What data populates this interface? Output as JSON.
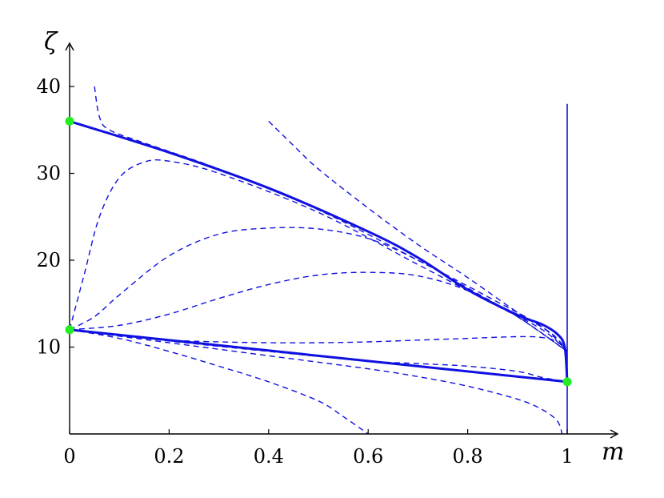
{
  "chart_data": {
    "type": "line",
    "xlabel": "m",
    "ylabel": "ζ",
    "xlim": [
      0,
      1
    ],
    "ylim": [
      0,
      40
    ],
    "xticks": [
      0,
      0.2,
      0.4,
      0.6,
      0.8,
      1
    ],
    "xtick_labels": [
      "0",
      "0.2",
      "0.4",
      "0.6",
      "0.8",
      "1"
    ],
    "yticks": [
      10,
      20,
      30,
      40
    ],
    "ytick_labels": [
      "10",
      "20",
      "30",
      "40"
    ],
    "grid": false,
    "legend": "none",
    "colors": {
      "curve": "#1010e0",
      "point": "#22ee22",
      "axis": "#000000"
    },
    "solid_series": [
      {
        "points": [
          [
            0,
            36
          ],
          [
            0.2,
            32.4
          ],
          [
            0.4,
            28.3
          ],
          [
            0.6,
            23.3
          ],
          [
            0.7,
            20.3
          ],
          [
            0.8,
            16.6
          ],
          [
            0.9,
            13.7
          ],
          [
            0.95,
            12.6
          ],
          [
            0.98,
            11.5
          ],
          [
            0.995,
            10.0
          ],
          [
            1.0,
            6
          ]
        ]
      },
      {
        "points": [
          [
            0,
            12
          ],
          [
            1,
            6
          ]
        ]
      },
      {
        "points": [
          [
            1,
            0
          ],
          [
            1,
            38
          ]
        ]
      }
    ],
    "dashed_series": [
      {
        "points": [
          [
            0.05,
            40
          ],
          [
            0.06,
            36.5
          ],
          [
            0.08,
            35.0
          ],
          [
            0.15,
            33.5
          ],
          [
            0.3,
            30.5
          ],
          [
            0.5,
            25.8
          ],
          [
            0.7,
            20.0
          ],
          [
            0.85,
            15.5
          ],
          [
            0.95,
            12.3
          ],
          [
            1.0,
            9.5
          ]
        ]
      },
      {
        "points": [
          [
            0.4,
            36
          ],
          [
            0.45,
            33.2
          ],
          [
            0.5,
            30.5
          ],
          [
            0.6,
            26.0
          ],
          [
            0.7,
            21.8
          ],
          [
            0.8,
            18.0
          ],
          [
            0.9,
            14.0
          ],
          [
            0.97,
            11.5
          ],
          [
            1.0,
            9.5
          ]
        ]
      },
      {
        "points": [
          [
            0,
            12
          ],
          [
            0.03,
            18.5
          ],
          [
            0.06,
            25.0
          ],
          [
            0.1,
            29.5
          ],
          [
            0.15,
            31.3
          ],
          [
            0.2,
            31.4
          ],
          [
            0.3,
            30.0
          ],
          [
            0.5,
            25.5
          ],
          [
            0.7,
            19.5
          ],
          [
            0.85,
            15.0
          ],
          [
            0.95,
            12.0
          ],
          [
            1.0,
            9.5
          ]
        ]
      },
      {
        "points": [
          [
            0,
            12
          ],
          [
            0.05,
            13.5
          ],
          [
            0.1,
            16.0
          ],
          [
            0.2,
            20.5
          ],
          [
            0.3,
            23.0
          ],
          [
            0.4,
            23.7
          ],
          [
            0.5,
            23.6
          ],
          [
            0.6,
            22.5
          ],
          [
            0.7,
            20.0
          ],
          [
            0.8,
            16.8
          ],
          [
            0.9,
            13.5
          ],
          [
            1.0,
            9.5
          ]
        ]
      },
      {
        "points": [
          [
            0,
            12
          ],
          [
            0.1,
            12.5
          ],
          [
            0.2,
            13.8
          ],
          [
            0.3,
            15.6
          ],
          [
            0.4,
            17.2
          ],
          [
            0.5,
            18.3
          ],
          [
            0.6,
            18.6
          ],
          [
            0.7,
            18.2
          ],
          [
            0.8,
            16.5
          ],
          [
            0.9,
            13.5
          ],
          [
            1.0,
            9.5
          ]
        ]
      },
      {
        "points": [
          [
            0,
            12
          ],
          [
            0.1,
            11.3
          ],
          [
            0.2,
            10.8
          ],
          [
            0.3,
            10.6
          ],
          [
            0.4,
            10.5
          ],
          [
            0.5,
            10.5
          ],
          [
            0.6,
            10.6
          ],
          [
            0.7,
            10.8
          ],
          [
            0.8,
            11.0
          ],
          [
            0.9,
            11.2
          ],
          [
            0.95,
            11.1
          ],
          [
            0.98,
            10.6
          ],
          [
            1.0,
            9.5
          ]
        ]
      },
      {
        "points": [
          [
            0,
            12
          ],
          [
            0.2,
            10.7
          ],
          [
            0.4,
            9.5
          ],
          [
            0.6,
            8.4
          ],
          [
            0.7,
            8.1
          ],
          [
            0.8,
            7.8
          ],
          [
            0.9,
            7.2
          ],
          [
            0.95,
            6.5
          ],
          [
            1.0,
            6
          ]
        ]
      },
      {
        "points": [
          [
            0,
            12
          ],
          [
            0.2,
            10.5
          ],
          [
            0.4,
            9.0
          ],
          [
            0.6,
            7.5
          ],
          [
            0.7,
            6.6
          ],
          [
            0.8,
            5.5
          ],
          [
            0.9,
            4.0
          ],
          [
            0.95,
            2.8
          ],
          [
            0.98,
            1.5
          ],
          [
            0.99,
            0
          ]
        ]
      },
      {
        "points": [
          [
            0,
            12
          ],
          [
            0.1,
            11.0
          ],
          [
            0.2,
            9.5
          ],
          [
            0.3,
            7.8
          ],
          [
            0.4,
            6.0
          ],
          [
            0.5,
            3.8
          ],
          [
            0.55,
            2.0
          ],
          [
            0.6,
            0
          ]
        ]
      }
    ],
    "points": [
      {
        "x": 0,
        "y": 36
      },
      {
        "x": 0,
        "y": 12
      },
      {
        "x": 1,
        "y": 6
      }
    ]
  }
}
